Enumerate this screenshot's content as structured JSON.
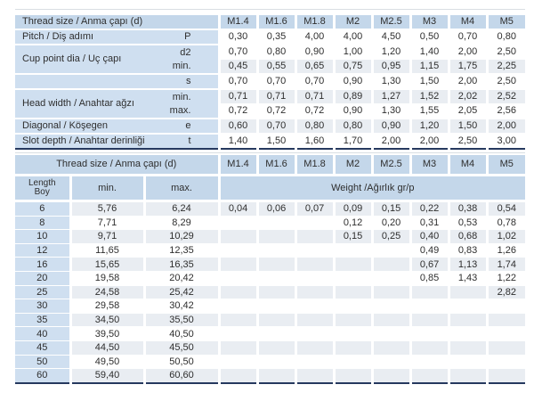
{
  "colors": {
    "header_bg": "#c4d7ea",
    "label_bg": "#cfdff0",
    "shade_bg": "#e9edf2",
    "white_bg": "#ffffff",
    "border_navy": "#26395f",
    "text": "#2e2e2e",
    "divider": "#d9dee3"
  },
  "table1": {
    "header_label": "Thread size / Anma çapı (d)",
    "columns": [
      "M1.4",
      "M1.6",
      "M1.8",
      "M2",
      "M2.5",
      "M3",
      "M4",
      "M5"
    ],
    "groups": [
      {
        "label": "Pitch / Diş adımı",
        "rows": [
          {
            "sym": "P",
            "shaded": false,
            "values": [
              "0,30",
              "0,35",
              "4,00",
              "4,00",
              "4,50",
              "0,50",
              "0,70",
              "0,80"
            ]
          }
        ]
      },
      {
        "label": "Cup point dia / Uç çapı",
        "rows": [
          {
            "sym": "d2",
            "shaded": false,
            "values": [
              "0,70",
              "0,80",
              "0,90",
              "1,00",
              "1,20",
              "1,40",
              "2,00",
              "2,50"
            ]
          },
          {
            "sym": "min.",
            "shaded": true,
            "values": [
              "0,45",
              "0,55",
              "0,65",
              "0,75",
              "0,95",
              "1,15",
              "1,75",
              "2,25"
            ]
          }
        ]
      },
      {
        "label": "",
        "rows": [
          {
            "sym": "s",
            "shaded": false,
            "values": [
              "0,70",
              "0,70",
              "0,70",
              "0,90",
              "1,30",
              "1,50",
              "2,00",
              "2,50"
            ]
          }
        ]
      },
      {
        "label": "Head width / Anahtar ağzı",
        "rows": [
          {
            "sym": "min.",
            "shaded": true,
            "values": [
              "0,71",
              "0,71",
              "0,71",
              "0,89",
              "1,27",
              "1,52",
              "2,02",
              "2,52"
            ]
          },
          {
            "sym": "max.",
            "shaded": false,
            "values": [
              "0,72",
              "0,72",
              "0,72",
              "0,90",
              "1,30",
              "1,55",
              "2,05",
              "2,56"
            ]
          }
        ]
      },
      {
        "label": "Diagonal / Köşegen",
        "rows": [
          {
            "sym": "e",
            "shaded": true,
            "values": [
              "0,60",
              "0,70",
              "0,80",
              "0,80",
              "0,90",
              "1,20",
              "1,50",
              "2,00"
            ]
          }
        ]
      },
      {
        "label": "Slot depth / Anahtar derinliği",
        "rows": [
          {
            "sym": "t",
            "shaded": false,
            "values": [
              "1,40",
              "1,50",
              "1,60",
              "1,70",
              "2,00",
              "2,00",
              "2,50",
              "3,00"
            ]
          }
        ]
      }
    ]
  },
  "table2": {
    "header_label": "Thread size / Anma çapı (d)",
    "columns": [
      "M1.4",
      "M1.6",
      "M1.8",
      "M2",
      "M2.5",
      "M3",
      "M4",
      "M5"
    ],
    "length_label_line1": "Length",
    "length_label_line2": "Boy",
    "min_label": "min.",
    "max_label": "max.",
    "weight_label": "Weight /Ağırlık gr/p",
    "rows": [
      {
        "length": "6",
        "min": "5,76",
        "max": "6,24",
        "shaded": true,
        "weights": [
          "0,04",
          "0,06",
          "0,07",
          "0,09",
          "0,15",
          "0,22",
          "0,38",
          "0,54"
        ]
      },
      {
        "length": "8",
        "min": "7,71",
        "max": "8,29",
        "shaded": false,
        "weights": [
          "",
          "",
          "",
          "0,12",
          "0,20",
          "0,31",
          "0,53",
          "0,78"
        ]
      },
      {
        "length": "10",
        "min": "9,71",
        "max": "10,29",
        "shaded": true,
        "weights": [
          "",
          "",
          "",
          "0,15",
          "0,25",
          "0,40",
          "0,68",
          "1,02"
        ]
      },
      {
        "length": "12",
        "min": "11,65",
        "max": "12,35",
        "shaded": false,
        "weights": [
          "",
          "",
          "",
          "",
          "",
          "0,49",
          "0,83",
          "1,26"
        ]
      },
      {
        "length": "16",
        "min": "15,65",
        "max": "16,35",
        "shaded": true,
        "weights": [
          "",
          "",
          "",
          "",
          "",
          "0,67",
          "1,13",
          "1,74"
        ]
      },
      {
        "length": "20",
        "min": "19,58",
        "max": "20,42",
        "shaded": false,
        "weights": [
          "",
          "",
          "",
          "",
          "",
          "0,85",
          "1,43",
          "1,22"
        ]
      },
      {
        "length": "25",
        "min": "24,58",
        "max": "25,42",
        "shaded": true,
        "weights": [
          "",
          "",
          "",
          "",
          "",
          "",
          "",
          "2,82"
        ]
      },
      {
        "length": "30",
        "min": "29,58",
        "max": "30,42",
        "shaded": false,
        "weights": [
          "",
          "",
          "",
          "",
          "",
          "",
          "",
          ""
        ]
      },
      {
        "length": "35",
        "min": "34,50",
        "max": "35,50",
        "shaded": true,
        "weights": [
          "",
          "",
          "",
          "",
          "",
          "",
          "",
          ""
        ]
      },
      {
        "length": "40",
        "min": "39,50",
        "max": "40,50",
        "shaded": false,
        "weights": [
          "",
          "",
          "",
          "",
          "",
          "",
          "",
          ""
        ]
      },
      {
        "length": "45",
        "min": "44,50",
        "max": "45,50",
        "shaded": true,
        "weights": [
          "",
          "",
          "",
          "",
          "",
          "",
          "",
          ""
        ]
      },
      {
        "length": "50",
        "min": "49,50",
        "max": "50,50",
        "shaded": false,
        "weights": [
          "",
          "",
          "",
          "",
          "",
          "",
          "",
          ""
        ]
      },
      {
        "length": "60",
        "min": "59,40",
        "max": "60,60",
        "shaded": true,
        "weights": [
          "",
          "",
          "",
          "",
          "",
          "",
          "",
          ""
        ]
      }
    ]
  }
}
